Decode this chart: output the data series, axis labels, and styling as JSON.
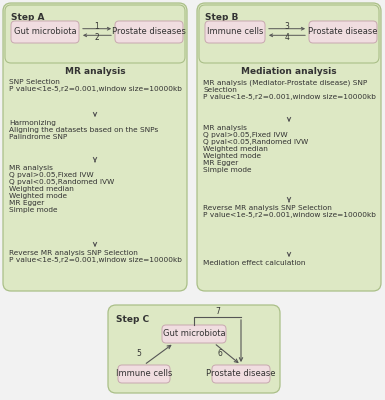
{
  "bg_color": "#f2f2f2",
  "outer_fill": "#dde8c4",
  "inner_fill": "#f0dde0",
  "outer_edge": "#aabf88",
  "inner_edge": "#c8a8b0",
  "panel_fill": "#e8edd8",
  "text_color": "#333333",
  "arrow_color": "#555555",
  "step_a": {
    "label": "Step A",
    "left_box": "Gut microbiota",
    "right_box": "Prostate diseases",
    "arrow1": "1",
    "arrow2": "2"
  },
  "step_b": {
    "label": "Step B",
    "left_box": "Immune cells",
    "right_box": "Prostate disease",
    "arrow1": "3",
    "arrow2": "4"
  },
  "mr_title": "MR analysis",
  "mr_steps": [
    "SNP Selection\nP value<1e-5,r2=0.001,window size=10000kb",
    "Harmonizing\nAligning the datasets based on the SNPs\nPalindrome SNP",
    "MR analysis\nQ pval>0.05,Fixed IVW\nQ pval<0.05,Randomed IVW\nWeighted median\nWeighted mode\nMR Egger\nSimple mode",
    "Reverse MR analysis SNP Selection\nP value<1e-5,r2=0.001,window size=10000kb"
  ],
  "med_title": "Mediation analysis",
  "med_steps": [
    "MR analysis (Mediator-Prostate disease) SNP\nSelection\nP value<1e-5,r2=0.001,window size=10000kb",
    "MR analysis\nQ pval>0.05,Fixed IVW\nQ pval<0.05,Randomed IVW\nWeighted median\nWeighted mode\nMR Egger\nSimple mode",
    "Reverse MR analysis SNP Selection\nP value<1e-5,r2=0.001,window size=10000kb",
    "Mediation effect calculation"
  ],
  "step_c": {
    "label": "Step C",
    "top_box": "Gut microbiota",
    "left_box": "Immune cells",
    "right_box": "Prostate disease",
    "arrow5": "5",
    "arrow6": "6",
    "arrow7": "7"
  }
}
